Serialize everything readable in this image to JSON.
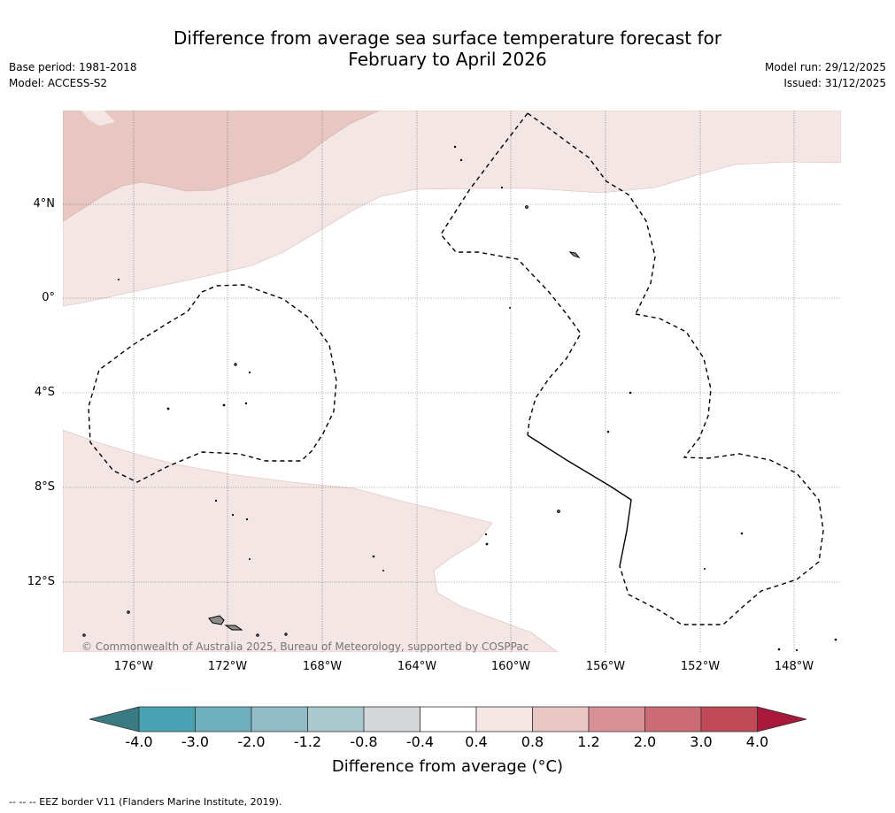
{
  "header": {
    "title_line1": "Difference from average sea surface temperature forecast for",
    "title_line2": "February to April 2026",
    "base_period": "Base period: 1981-2018",
    "model": "Model: ACCESS-S2",
    "model_run": "Model run: 29/12/2025",
    "issued": "Issued: 31/12/2025"
  },
  "map": {
    "lat_labels": [
      "4°N",
      "0°",
      "4°S",
      "8°S",
      "12°S"
    ],
    "lon_labels": [
      "176°W",
      "172°W",
      "168°W",
      "164°W",
      "160°W",
      "156°W",
      "152°W",
      "148°W"
    ],
    "copyright": "© Commonwealth of Australia 2025, Bureau of Meteorology, supported by COSPPac",
    "colors": {
      "warm_0_4_0_8": "#f4e6e4",
      "warm_0_8_1_2": "#e8c7c3",
      "land": "#8c8c8c"
    }
  },
  "colorbar": {
    "ticks": [
      "-4.0",
      "-3.0",
      "-2.0",
      "-1.2",
      "-0.8",
      "-0.4",
      "0.4",
      "0.8",
      "1.2",
      "2.0",
      "3.0",
      "4.0"
    ],
    "colors": [
      "#3a7a83",
      "#4aa3b3",
      "#6fb0bc",
      "#92bbc6",
      "#aac8ce",
      "#d3d7d8",
      "#ffffff",
      "#f4e6e4",
      "#e8c7c3",
      "#d99097",
      "#cb6b76",
      "#c04a58",
      "#a8183a"
    ],
    "title": "Difference from average (°C)"
  },
  "footer": {
    "legend": "--  --  -- EEZ border V11 (Flanders Marine Institute, 2019)."
  }
}
